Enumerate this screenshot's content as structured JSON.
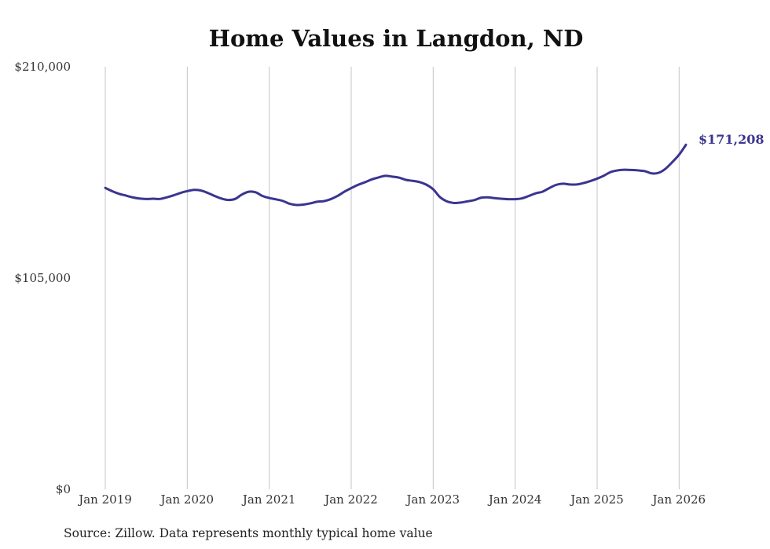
{
  "chart_data": {
    "type": "line",
    "title": "Home Values in Langdon, ND",
    "source": "Source: Zillow. Data represents monthly typical home value",
    "ylim": [
      0,
      210000
    ],
    "y_ticks": [
      {
        "value": 0,
        "label": "$0"
      },
      {
        "value": 105000,
        "label": "$105,000"
      },
      {
        "value": 210000,
        "label": "$210,000"
      }
    ],
    "x_range": [
      2019.0,
      2026.0833
    ],
    "x_ticks": [
      {
        "value": 2019,
        "label": "Jan 2019"
      },
      {
        "value": 2020,
        "label": "Jan 2020"
      },
      {
        "value": 2021,
        "label": "Jan 2021"
      },
      {
        "value": 2022,
        "label": "Jan 2022"
      },
      {
        "value": 2023,
        "label": "Jan 2023"
      },
      {
        "value": 2024,
        "label": "Jan 2024"
      },
      {
        "value": 2025,
        "label": "Jan 2025"
      },
      {
        "value": 2026,
        "label": "Jan 2026"
      }
    ],
    "grid": "vertical",
    "line_color": "#3a3590",
    "end_label": "$171,208",
    "series": [
      {
        "name": "Typical home value",
        "x": [
          2019.0,
          2019.0833,
          2019.1667,
          2019.25,
          2019.3333,
          2019.4167,
          2019.5,
          2019.5833,
          2019.6667,
          2019.75,
          2019.8333,
          2019.9167,
          2020.0,
          2020.0833,
          2020.1667,
          2020.25,
          2020.3333,
          2020.4167,
          2020.5,
          2020.5833,
          2020.6667,
          2020.75,
          2020.8333,
          2020.9167,
          2021.0,
          2021.0833,
          2021.1667,
          2021.25,
          2021.3333,
          2021.4167,
          2021.5,
          2021.5833,
          2021.6667,
          2021.75,
          2021.8333,
          2021.9167,
          2022.0,
          2022.0833,
          2022.1667,
          2022.25,
          2022.3333,
          2022.4167,
          2022.5,
          2022.5833,
          2022.6667,
          2022.75,
          2022.8333,
          2022.9167,
          2023.0,
          2023.0833,
          2023.1667,
          2023.25,
          2023.3333,
          2023.4167,
          2023.5,
          2023.5833,
          2023.6667,
          2023.75,
          2023.8333,
          2023.9167,
          2024.0,
          2024.0833,
          2024.1667,
          2024.25,
          2024.3333,
          2024.4167,
          2024.5,
          2024.5833,
          2024.6667,
          2024.75,
          2024.8333,
          2024.9167,
          2025.0,
          2025.0833,
          2025.1667,
          2025.25,
          2025.3333,
          2025.4167,
          2025.5,
          2025.5833,
          2025.6667,
          2025.75,
          2025.8333,
          2025.9167,
          2026.0,
          2026.0833
        ],
        "values": [
          149800,
          148200,
          146900,
          146000,
          145100,
          144500,
          144300,
          144400,
          144300,
          145100,
          146100,
          147300,
          148200,
          148800,
          148500,
          147300,
          145800,
          144500,
          143800,
          144300,
          146500,
          147900,
          147600,
          145800,
          144800,
          144100,
          143300,
          141900,
          141300,
          141500,
          142100,
          142900,
          143200,
          144200,
          145800,
          147900,
          149700,
          151300,
          152600,
          154000,
          155000,
          155800,
          155400,
          154900,
          153800,
          153300,
          152700,
          151400,
          149100,
          145200,
          143100,
          142300,
          142500,
          143100,
          143700,
          144900,
          145100,
          144700,
          144400,
          144200,
          144200,
          144600,
          145800,
          147100,
          147900,
          149700,
          151300,
          151900,
          151500,
          151500,
          152200,
          153200,
          154400,
          155900,
          157700,
          158500,
          158800,
          158700,
          158500,
          158100,
          157000,
          157300,
          159300,
          162600,
          166300,
          171208
        ]
      }
    ]
  }
}
